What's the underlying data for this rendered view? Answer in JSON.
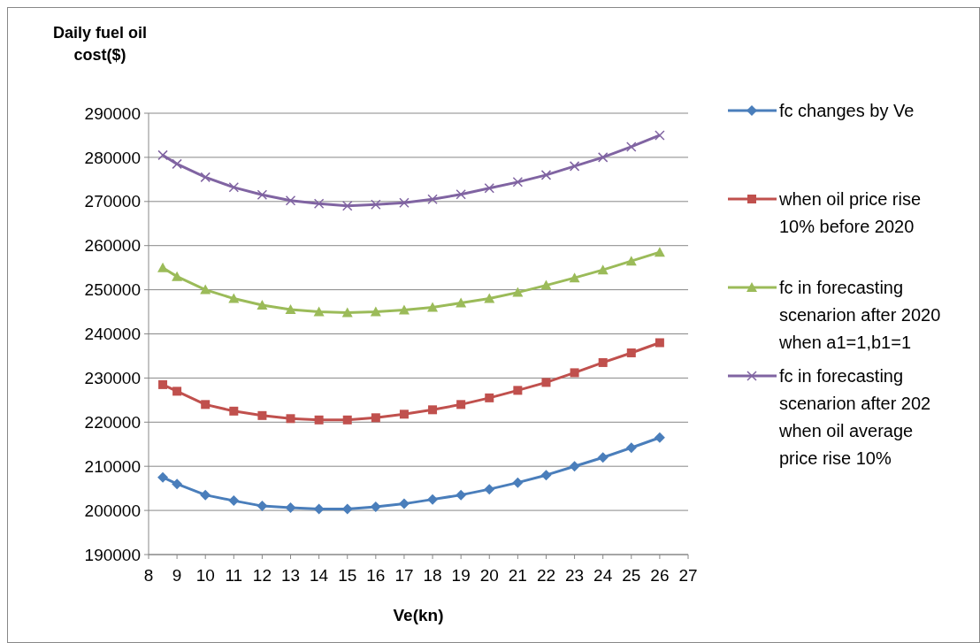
{
  "chart_data": {
    "type": "line",
    "xlabel": "Ve(kn)",
    "ylabel": "Daily fuel oil cost($)",
    "x": [
      8.5,
      9,
      10,
      11,
      12,
      13,
      14,
      15,
      16,
      17,
      18,
      19,
      20,
      21,
      22,
      23,
      24,
      25,
      26
    ],
    "series": [
      {
        "name": "fc changes by Ve",
        "color": "#4a7ebb",
        "marker": "diamond",
        "values": [
          207500,
          206000,
          203500,
          202200,
          201000,
          200600,
          200300,
          200300,
          200800,
          201500,
          202500,
          203500,
          204800,
          206300,
          208000,
          210000,
          212000,
          214200,
          216500
        ]
      },
      {
        "name": "when oil price rise 10% before 2020",
        "color": "#c0504d",
        "marker": "square",
        "values": [
          228500,
          227000,
          224000,
          222500,
          221500,
          220800,
          220500,
          220500,
          221000,
          221800,
          222800,
          224000,
          225500,
          227200,
          229000,
          231200,
          233500,
          235700,
          238000
        ]
      },
      {
        "name": "fc in forecasting scenarion after 2020 when a1=1,b1=1",
        "color": "#9bbb59",
        "marker": "triangle",
        "values": [
          255000,
          253000,
          250000,
          248000,
          246500,
          245500,
          245000,
          244800,
          245000,
          245400,
          246000,
          247000,
          248000,
          249400,
          251000,
          252700,
          254500,
          256500,
          258500
        ]
      },
      {
        "name": "fc in forecasting scenarion after 202 when oil average price rise 10%",
        "color": "#8064a2",
        "marker": "cross",
        "values": [
          280500,
          278500,
          275500,
          273200,
          271500,
          270200,
          269500,
          269000,
          269300,
          269700,
          270500,
          271600,
          273000,
          274400,
          276000,
          278000,
          280000,
          282400,
          285000
        ]
      }
    ],
    "xlim": [
      8,
      27
    ],
    "xticks": [
      8,
      9,
      10,
      11,
      12,
      13,
      14,
      15,
      16,
      17,
      18,
      19,
      20,
      21,
      22,
      23,
      24,
      25,
      26,
      27
    ],
    "ylim": [
      190000,
      290000
    ],
    "yticks": [
      190000,
      200000,
      210000,
      220000,
      230000,
      240000,
      250000,
      260000,
      270000,
      280000,
      290000
    ],
    "grid": "y",
    "legend": "right",
    "line_style": "solid"
  }
}
